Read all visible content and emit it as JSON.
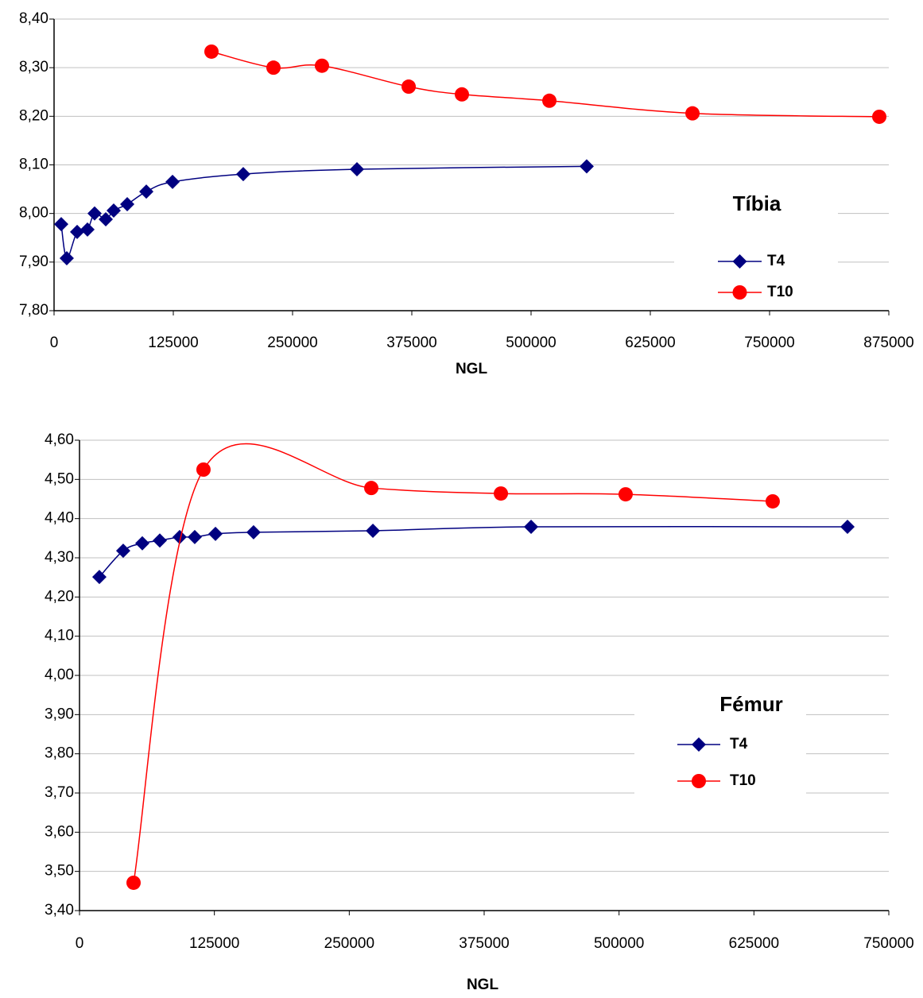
{
  "chart_data": [
    {
      "type": "line",
      "legend_title": "Tíbia",
      "x_label": "NGL",
      "xlim": [
        0,
        875000
      ],
      "xticks": [
        0,
        125000,
        250000,
        375000,
        500000,
        625000,
        750000,
        875000
      ],
      "ylim": [
        7.8,
        8.4
      ],
      "yticks": [
        {
          "value": 7.8,
          "label": "7,80"
        },
        {
          "value": 7.9,
          "label": "7,90"
        },
        {
          "value": 8.0,
          "label": "8,00"
        },
        {
          "value": 8.1,
          "label": "8,10"
        },
        {
          "value": 8.2,
          "label": "8,20"
        },
        {
          "value": 8.3,
          "label": "8,30"
        },
        {
          "value": 8.4,
          "label": "8,40"
        }
      ],
      "grid": true,
      "series": [
        {
          "name": "T4",
          "color": "#000080",
          "marker": "diamond",
          "x": [
            7500,
            13300,
            24200,
            35000,
            42500,
            54200,
            62500,
            76700,
            96700,
            124200,
            198300,
            317500,
            558300
          ],
          "values": [
            7.978,
            7.908,
            7.962,
            7.967,
            8.0,
            7.988,
            8.006,
            8.019,
            8.045,
            8.065,
            8.081,
            8.091,
            8.097
          ]
        },
        {
          "name": "T10",
          "color": "#ff0000",
          "marker": "circle",
          "x": [
            165000,
            230000,
            280800,
            371700,
            427500,
            519200,
            669200,
            865000
          ],
          "values": [
            8.333,
            8.3,
            8.304,
            8.261,
            8.245,
            8.232,
            8.206,
            8.199
          ]
        }
      ]
    },
    {
      "type": "line",
      "legend_title": "Fémur",
      "x_label": "NGL",
      "xlim": [
        0,
        750000
      ],
      "xticks": [
        0,
        125000,
        250000,
        375000,
        500000,
        625000,
        750000
      ],
      "ylim": [
        3.4,
        4.6
      ],
      "yticks": [
        {
          "value": 3.4,
          "label": "3,40"
        },
        {
          "value": 3.5,
          "label": "3,50"
        },
        {
          "value": 3.6,
          "label": "3,60"
        },
        {
          "value": 3.7,
          "label": "3,70"
        },
        {
          "value": 3.8,
          "label": "3,80"
        },
        {
          "value": 3.9,
          "label": "3,90"
        },
        {
          "value": 4.0,
          "label": "4,00"
        },
        {
          "value": 4.1,
          "label": "4,10"
        },
        {
          "value": 4.2,
          "label": "4,20"
        },
        {
          "value": 4.3,
          "label": "4,30"
        },
        {
          "value": 4.4,
          "label": "4,40"
        },
        {
          "value": 4.5,
          "label": "4,50"
        },
        {
          "value": 4.6,
          "label": "4,60"
        }
      ],
      "grid": true,
      "series": [
        {
          "name": "T4",
          "color": "#000080",
          "marker": "diamond",
          "x": [
            18400,
            40500,
            58200,
            74400,
            92800,
            106800,
            126000,
            161300,
            271900,
            418500,
            711700
          ],
          "values": [
            4.251,
            4.318,
            4.337,
            4.344,
            4.353,
            4.353,
            4.361,
            4.365,
            4.369,
            4.379,
            4.379
          ]
        },
        {
          "name": "T10",
          "color": "#ff0000",
          "marker": "circle",
          "x": [
            50100,
            114900,
            270400,
            390500,
            506100,
            642400
          ],
          "values": [
            3.471,
            4.525,
            4.478,
            4.464,
            4.462,
            4.444
          ]
        }
      ]
    }
  ]
}
